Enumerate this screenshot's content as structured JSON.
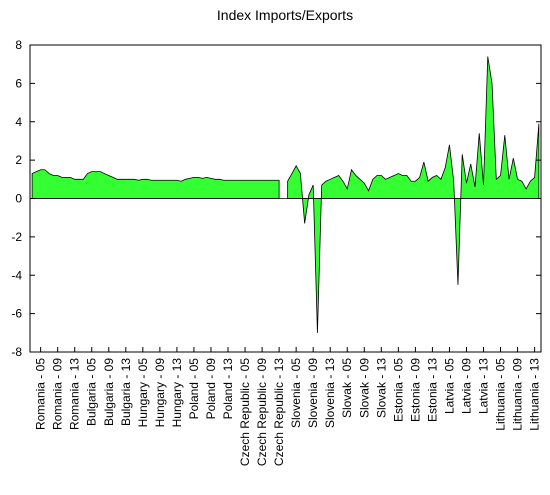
{
  "chart_data": {
    "type": "area",
    "title": "Index Imports/Exports",
    "categories": [
      null,
      null,
      "Romania - 05",
      null,
      null,
      null,
      "Romania - 09",
      null,
      null,
      null,
      "Romania - 13",
      null,
      null,
      null,
      "Bulgaria - 05",
      null,
      null,
      null,
      "Bulgaria - 09",
      null,
      null,
      null,
      "Bulgaria - 13",
      null,
      null,
      null,
      "Hungary - 05",
      null,
      null,
      null,
      "Hungary - 09",
      null,
      null,
      null,
      "Hungary - 13",
      null,
      null,
      null,
      "Poland - 05",
      null,
      null,
      null,
      "Poland - 09",
      null,
      null,
      null,
      "Poland - 13",
      null,
      null,
      null,
      "Czech Republic - 05",
      null,
      null,
      null,
      "Czech Republic - 09",
      null,
      null,
      null,
      "Czech Republic - 13",
      null,
      null,
      null,
      "Slovenia - 05",
      null,
      null,
      null,
      "Slovenia - 09",
      null,
      null,
      null,
      "Slovenia - 13",
      null,
      null,
      null,
      "Slovak - 05",
      null,
      null,
      null,
      "Slovak - 09",
      null,
      null,
      null,
      "Slovak - 13",
      null,
      null,
      null,
      "Estonia - 05",
      null,
      null,
      null,
      "Estonia - 09",
      null,
      null,
      null,
      "Estonia - 13",
      null,
      null,
      null,
      "Latvia - 05",
      null,
      null,
      null,
      "Latvia - 09",
      null,
      null,
      null,
      "Latvia - 13",
      null,
      null,
      null,
      "Lithuania - 05",
      null,
      null,
      null,
      "Lithuania - 09",
      null,
      null,
      null,
      "Lithuania - 13",
      null
    ],
    "series": [
      {
        "name": "Index Imports/Exports",
        "color": "#33ff33",
        "values": [
          1.3,
          1.4,
          1.5,
          1.5,
          1.3,
          1.2,
          1.2,
          1.1,
          1.1,
          1.1,
          1.0,
          1.0,
          1.0,
          1.3,
          1.4,
          1.4,
          1.4,
          1.3,
          1.2,
          1.1,
          1.0,
          1.0,
          1.0,
          1.0,
          1.0,
          0.95,
          1.0,
          1.0,
          0.95,
          0.95,
          0.95,
          0.95,
          0.95,
          0.95,
          0.95,
          0.9,
          1.0,
          1.05,
          1.1,
          1.1,
          1.05,
          1.1,
          1.05,
          1.0,
          1.0,
          0.95,
          0.95,
          0.95,
          0.95,
          0.95,
          0.95,
          0.95,
          0.95,
          0.95,
          0.95,
          0.95,
          0.95,
          0.95,
          0.95,
          null,
          0.9,
          1.3,
          1.7,
          1.3,
          -1.3,
          0.2,
          0.7,
          -7.0,
          0.7,
          0.9,
          1.0,
          1.1,
          1.2,
          0.9,
          0.5,
          1.5,
          1.2,
          1.0,
          0.8,
          0.4,
          1.0,
          1.2,
          1.2,
          1.0,
          1.1,
          1.2,
          1.3,
          1.2,
          1.2,
          0.9,
          0.9,
          1.1,
          1.9,
          0.9,
          1.1,
          1.2,
          1.0,
          1.6,
          2.8,
          0.9,
          -4.5,
          2.3,
          0.8,
          1.8,
          0.6,
          3.4,
          0.7,
          7.4,
          6.0,
          1.0,
          1.2,
          3.3,
          1.0,
          2.1,
          1.0,
          0.9,
          0.5,
          0.9,
          1.1,
          3.9
        ]
      }
    ],
    "ylim": [
      -8,
      8
    ],
    "yticks": [
      -8,
      -6,
      -4,
      -2,
      0,
      2,
      4,
      6,
      8
    ]
  }
}
